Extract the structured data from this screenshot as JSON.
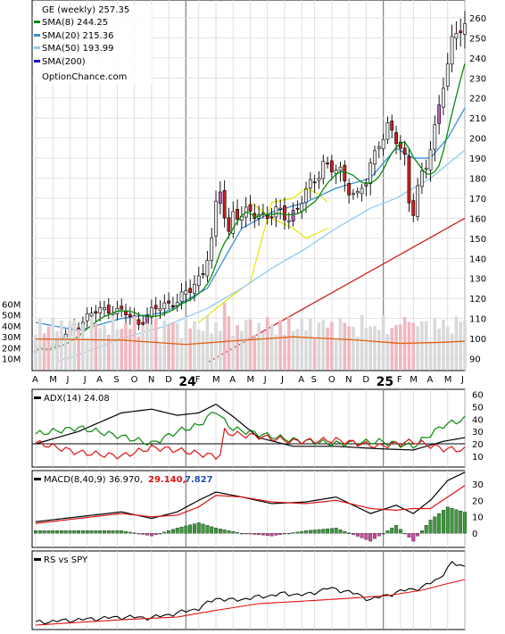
{
  "colors": {
    "up": "#e8e8e8",
    "down": "#cc1f1f",
    "doji": "#c060c0",
    "upvol": "#d9d9d9",
    "downvol": "#f0b8c0",
    "sma8": "#0a8a0a",
    "sma20": "#3b8fd9",
    "sma50": "#8fcbf0",
    "sma200": "#1010c0",
    "avgvol": "#e06010",
    "adx": "#000000",
    "diplus": "#0a8a0a",
    "diminus": "#dd1111",
    "macd": "#000000",
    "signal": "#dd1111",
    "hist_up": "#3a9a3a",
    "hist_down": "#cc4aa0",
    "rs": "#000000",
    "rs_ma": "#dd1111",
    "bb": "#e6e600"
  },
  "chart_data": [
    {
      "type": "candlestick",
      "name": "price",
      "title": "GE (weekly) 257.35",
      "legend": [
        {
          "label": "SMA(8) 244.25",
          "color": "#0a8a0a"
        },
        {
          "label": "SMA(20) 215.36",
          "color": "#3b8fd9"
        },
        {
          "label": "SMA(50) 193.99",
          "color": "#8fcbf0"
        },
        {
          "label": "SMA(200)",
          "color": "#1010c0"
        }
      ],
      "watermark": "OptionChance.com",
      "ylim": [
        88,
        268
      ],
      "y_ticks": [
        90,
        100,
        110,
        120,
        130,
        140,
        150,
        160,
        170,
        180,
        190,
        200,
        210,
        220,
        230,
        240,
        250,
        260
      ],
      "x_labels": [
        "A",
        "M",
        "J",
        "J",
        "A",
        "S",
        "O",
        "N",
        "D",
        "24",
        "F",
        "M",
        "A",
        "M",
        "J",
        "J",
        "A",
        "S",
        "O",
        "N",
        "D",
        "25",
        "F",
        "M",
        "A",
        "M",
        "J"
      ],
      "close_anchors": [
        [
          0,
          93
        ],
        [
          3,
          96
        ],
        [
          6,
          100
        ],
        [
          9,
          106
        ],
        [
          12,
          111
        ],
        [
          15,
          114
        ],
        [
          18,
          115
        ],
        [
          21,
          112
        ],
        [
          24,
          108
        ],
        [
          27,
          113
        ],
        [
          30,
          117
        ],
        [
          33,
          119
        ],
        [
          36,
          124
        ],
        [
          39,
          134
        ],
        [
          41,
          148
        ],
        [
          42,
          165
        ],
        [
          43,
          174
        ],
        [
          44,
          162
        ],
        [
          45,
          153
        ],
        [
          46,
          164
        ],
        [
          48,
          160
        ],
        [
          50,
          163
        ],
        [
          53,
          162
        ],
        [
          55,
          161
        ],
        [
          57,
          163
        ],
        [
          59,
          161
        ],
        [
          61,
          165
        ],
        [
          63,
          172
        ],
        [
          65,
          180
        ],
        [
          67,
          188
        ],
        [
          69,
          184
        ],
        [
          71,
          182
        ],
        [
          73,
          176
        ],
        [
          75,
          171
        ],
        [
          77,
          178
        ],
        [
          78,
          185
        ],
        [
          80,
          200
        ],
        [
          82,
          205
        ],
        [
          84,
          198
        ],
        [
          86,
          190
        ],
        [
          87,
          170
        ],
        [
          88,
          165
        ],
        [
          89,
          175
        ],
        [
          91,
          185
        ],
        [
          93,
          205
        ],
        [
          95,
          230
        ],
        [
          97,
          245
        ],
        [
          99,
          255
        ],
        [
          100,
          257
        ]
      ],
      "sma_anchors": [
        {
          "series": "SMA(20)",
          "points": [
            [
              0,
              108
            ],
            [
              10,
              104
            ],
            [
              20,
              110
            ],
            [
              30,
              113
            ],
            [
              40,
              125
            ],
            [
              48,
              155
            ],
            [
              55,
              163
            ],
            [
              63,
              168
            ],
            [
              70,
              175
            ],
            [
              78,
              180
            ],
            [
              84,
              195
            ],
            [
              88,
              190
            ],
            [
              92,
              190
            ],
            [
              96,
              200
            ],
            [
              100,
              215
            ]
          ]
        },
        {
          "series": "SMA(50)",
          "points": [
            [
              0,
              85
            ],
            [
              10,
              92
            ],
            [
              20,
              100
            ],
            [
              30,
              106
            ],
            [
              40,
              115
            ],
            [
              48,
              125
            ],
            [
              55,
              135
            ],
            [
              63,
              145
            ],
            [
              70,
              155
            ],
            [
              78,
              165
            ],
            [
              84,
              170
            ],
            [
              88,
              175
            ],
            [
              92,
              180
            ],
            [
              96,
              187
            ],
            [
              100,
              194
            ]
          ]
        },
        {
          "series": "SMA(200)",
          "points": [
            [
              0,
              40
            ],
            [
              100,
              160
            ]
          ]
        }
      ]
    },
    {
      "type": "bar",
      "name": "volume",
      "y_ticks": [
        "10M",
        "20M",
        "30M",
        "40M",
        "50M",
        "60M"
      ],
      "ylim": [
        0,
        66
      ]
    },
    {
      "type": "line",
      "name": "adx",
      "label": "ADX(14) 24.08",
      "ylim": [
        2,
        64
      ],
      "y_ticks": [
        10,
        20,
        30,
        40,
        50,
        60
      ],
      "series": [
        {
          "name": "ADX",
          "points": [
            [
              0,
              20
            ],
            [
              10,
              30
            ],
            [
              20,
              45
            ],
            [
              27,
              48
            ],
            [
              33,
              43
            ],
            [
              38,
              45
            ],
            [
              42,
              52
            ],
            [
              46,
              42
            ],
            [
              52,
              25
            ],
            [
              60,
              18
            ],
            [
              70,
              18
            ],
            [
              80,
              16
            ],
            [
              88,
              15
            ],
            [
              95,
              22
            ],
            [
              100,
              25
            ]
          ]
        },
        {
          "name": "+DI",
          "points": [
            [
              0,
              28
            ],
            [
              10,
              33
            ],
            [
              20,
              26
            ],
            [
              27,
              20
            ],
            [
              33,
              30
            ],
            [
              38,
              35
            ],
            [
              42,
              47
            ],
            [
              44,
              38
            ],
            [
              46,
              32
            ],
            [
              52,
              28
            ],
            [
              60,
              23
            ],
            [
              70,
              20
            ],
            [
              80,
              22
            ],
            [
              88,
              18
            ],
            [
              95,
              35
            ],
            [
              100,
              40
            ]
          ]
        },
        {
          "name": "-DI",
          "points": [
            [
              0,
              21
            ],
            [
              10,
              13
            ],
            [
              20,
              10
            ],
            [
              27,
              17
            ],
            [
              33,
              15
            ],
            [
              38,
              12
            ],
            [
              42,
              10
            ],
            [
              43,
              11
            ],
            [
              44,
              30
            ],
            [
              46,
              28
            ],
            [
              52,
              26
            ],
            [
              60,
              22
            ],
            [
              70,
              23
            ],
            [
              80,
              18
            ],
            [
              88,
              22
            ],
            [
              95,
              16
            ],
            [
              100,
              15
            ]
          ]
        }
      ]
    },
    {
      "type": "line",
      "name": "macd",
      "label": "MACD(8,40,9) 36.970,",
      "values": [
        "29.140,",
        "7.827"
      ],
      "ylim": [
        -8,
        38
      ],
      "y_ticks": [
        0,
        10,
        20,
        30
      ],
      "series": [
        {
          "name": "MACD",
          "points": [
            [
              0,
              7
            ],
            [
              10,
              10
            ],
            [
              20,
              13
            ],
            [
              27,
              9
            ],
            [
              33,
              13
            ],
            [
              38,
              20
            ],
            [
              42,
              25
            ],
            [
              48,
              22
            ],
            [
              55,
              18
            ],
            [
              63,
              19
            ],
            [
              70,
              22
            ],
            [
              78,
              12
            ],
            [
              84,
              17
            ],
            [
              88,
              12
            ],
            [
              92,
              20
            ],
            [
              96,
              32
            ],
            [
              100,
              37
            ]
          ]
        },
        {
          "name": "Signal",
          "points": [
            [
              0,
              6
            ],
            [
              10,
              9
            ],
            [
              20,
              12
            ],
            [
              27,
              10
            ],
            [
              33,
              11
            ],
            [
              38,
              16
            ],
            [
              42,
              23
            ],
            [
              48,
              22
            ],
            [
              55,
              19
            ],
            [
              63,
              18
            ],
            [
              70,
              20
            ],
            [
              78,
              15
            ],
            [
              84,
              14
            ],
            [
              88,
              15
            ],
            [
              92,
              15
            ],
            [
              96,
              22
            ],
            [
              100,
              29
            ]
          ]
        }
      ]
    },
    {
      "type": "line",
      "name": "rs",
      "label": "RS vs SPY",
      "series": [
        {
          "name": "RS",
          "points": [
            [
              0,
              4
            ],
            [
              10,
              8
            ],
            [
              20,
              12
            ],
            [
              27,
              11
            ],
            [
              33,
              18
            ],
            [
              38,
              25
            ],
            [
              42,
              40
            ],
            [
              46,
              37
            ],
            [
              52,
              42
            ],
            [
              58,
              47
            ],
            [
              63,
              45
            ],
            [
              68,
              55
            ],
            [
              73,
              50
            ],
            [
              78,
              38
            ],
            [
              82,
              45
            ],
            [
              86,
              52
            ],
            [
              90,
              56
            ],
            [
              94,
              70
            ],
            [
              97,
              92
            ],
            [
              100,
              88
            ]
          ]
        },
        {
          "name": "RS MA",
          "points": [
            [
              0,
              0
            ],
            [
              20,
              8
            ],
            [
              33,
              12
            ],
            [
              42,
              22
            ],
            [
              52,
              32
            ],
            [
              63,
              36
            ],
            [
              73,
              40
            ],
            [
              82,
              44
            ],
            [
              90,
              52
            ],
            [
              96,
              62
            ],
            [
              100,
              68
            ]
          ]
        }
      ]
    }
  ]
}
